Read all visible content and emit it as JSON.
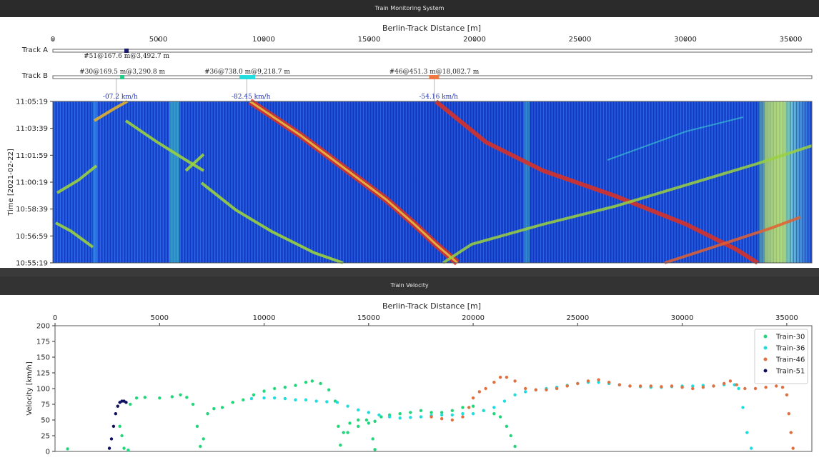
{
  "window": {
    "monitor_title": "Train Monitoring System",
    "velocity_title": "Train Velocity"
  },
  "waterfall": {
    "xlabel": "Berlin-Track Distance [m]",
    "ylabel": "Time [2021-02-22]",
    "xticks": [
      "0",
      "5000",
      "10000",
      "15000",
      "20000",
      "25000",
      "30000",
      "35000"
    ],
    "yticks": [
      "11:05:19",
      "11:03:39",
      "11:01:59",
      "11:00:19",
      "10:58:39",
      "10:56:59",
      "10:55:19"
    ],
    "tracks": [
      "Track A",
      "Track B"
    ],
    "track_labels": [
      {
        "text": "#51@167.6 m@3,492.7 m",
        "track": "A",
        "x_m": 3492.7,
        "color": "#1a1a6e"
      },
      {
        "text": "#30@169.5 m@3,290.8 m",
        "track": "B",
        "x_m": 3290.8,
        "color": "#22cc88"
      },
      {
        "text": "#36@738.0 m@9,218.7 m",
        "track": "B",
        "x_m": 9218.7,
        "color": "#22dddd"
      },
      {
        "text": "#46@451.3 m@18,082.7 m",
        "track": "B",
        "x_m": 18082.7,
        "color": "#ee7744"
      }
    ],
    "speed_labels": [
      {
        "text": "-07.2 km/h",
        "x_m": 3400
      },
      {
        "text": "-82.45 km/h",
        "x_m": 9600
      },
      {
        "text": "-54.16 km/h",
        "x_m": 18500
      }
    ],
    "x_range": [
      0,
      36000
    ]
  },
  "chart_data": {
    "type": "scatter",
    "xlabel": "Berlin-Track Distance [m]",
    "ylabel": "Velocity [km/h]",
    "xlim": [
      0,
      36200
    ],
    "ylim": [
      0,
      200
    ],
    "xticks": [
      "0",
      "5000",
      "10000",
      "15000",
      "20000",
      "25000",
      "30000",
      "35000"
    ],
    "yticks": [
      "0",
      "25",
      "50",
      "75",
      "100",
      "125",
      "150",
      "175",
      "200"
    ],
    "legend_position": "top-right",
    "series": [
      {
        "name": "Train-30",
        "color": "#22d67a",
        "points": [
          [
            600,
            4
          ],
          [
            3100,
            40
          ],
          [
            3200,
            25
          ],
          [
            3300,
            5
          ],
          [
            3500,
            2
          ],
          [
            3600,
            75
          ],
          [
            3900,
            85
          ],
          [
            4300,
            86
          ],
          [
            5000,
            85
          ],
          [
            5600,
            87
          ],
          [
            6000,
            90
          ],
          [
            6300,
            86
          ],
          [
            6600,
            75
          ],
          [
            6800,
            40
          ],
          [
            6950,
            8
          ],
          [
            7100,
            20
          ],
          [
            7300,
            60
          ],
          [
            7600,
            68
          ],
          [
            8000,
            70
          ],
          [
            8500,
            78
          ],
          [
            9000,
            82
          ],
          [
            9500,
            90
          ],
          [
            10000,
            96
          ],
          [
            10500,
            100
          ],
          [
            11000,
            102
          ],
          [
            11500,
            105
          ],
          [
            12000,
            110
          ],
          [
            12300,
            112
          ],
          [
            12700,
            108
          ],
          [
            13100,
            98
          ],
          [
            13400,
            80
          ],
          [
            13550,
            40
          ],
          [
            13650,
            10
          ],
          [
            13800,
            30
          ],
          [
            14100,
            45
          ],
          [
            14500,
            50
          ],
          [
            14900,
            50
          ],
          [
            15300,
            48
          ],
          [
            15600,
            55
          ],
          [
            16000,
            58
          ],
          [
            16500,
            60
          ],
          [
            17000,
            62
          ],
          [
            17500,
            65
          ],
          [
            18000,
            62
          ],
          [
            18500,
            62
          ],
          [
            19000,
            65
          ],
          [
            19500,
            70
          ],
          [
            20000,
            72
          ],
          [
            20500,
            65
          ],
          [
            21000,
            60
          ],
          [
            21300,
            55
          ],
          [
            21600,
            40
          ],
          [
            21800,
            25
          ],
          [
            22000,
            8
          ],
          [
            14000,
            30
          ],
          [
            14500,
            40
          ],
          [
            15000,
            45
          ],
          [
            15200,
            20
          ],
          [
            15300,
            3
          ]
        ]
      },
      {
        "name": "Train-36",
        "color": "#22dddd",
        "points": [
          [
            9400,
            84
          ],
          [
            10000,
            85
          ],
          [
            10500,
            85
          ],
          [
            11000,
            84
          ],
          [
            11500,
            82
          ],
          [
            12000,
            82
          ],
          [
            12500,
            80
          ],
          [
            13000,
            79
          ],
          [
            13500,
            78
          ],
          [
            14000,
            72
          ],
          [
            14500,
            66
          ],
          [
            15000,
            62
          ],
          [
            15500,
            58
          ],
          [
            16000,
            55
          ],
          [
            16500,
            53
          ],
          [
            17000,
            54
          ],
          [
            17500,
            55
          ],
          [
            18000,
            57
          ],
          [
            18500,
            58
          ],
          [
            19000,
            58
          ],
          [
            19500,
            60
          ],
          [
            20000,
            60
          ],
          [
            20500,
            65
          ],
          [
            21000,
            70
          ],
          [
            21500,
            80
          ],
          [
            22000,
            90
          ],
          [
            22500,
            95
          ],
          [
            23000,
            98
          ],
          [
            23500,
            100
          ],
          [
            24000,
            102
          ],
          [
            24500,
            105
          ],
          [
            25000,
            108
          ],
          [
            25500,
            110
          ],
          [
            26000,
            110
          ],
          [
            26500,
            108
          ],
          [
            27000,
            106
          ],
          [
            27500,
            104
          ],
          [
            28000,
            103
          ],
          [
            28500,
            102
          ],
          [
            29000,
            102
          ],
          [
            29500,
            103
          ],
          [
            30000,
            104
          ],
          [
            30500,
            104
          ],
          [
            31000,
            105
          ],
          [
            31500,
            104
          ],
          [
            32000,
            106
          ],
          [
            32500,
            106
          ],
          [
            32700,
            100
          ],
          [
            32900,
            70
          ],
          [
            33100,
            30
          ],
          [
            33300,
            5
          ]
        ]
      },
      {
        "name": "Train-46",
        "color": "#e07040",
        "points": [
          [
            18000,
            55
          ],
          [
            18500,
            52
          ],
          [
            19000,
            50
          ],
          [
            19500,
            55
          ],
          [
            19800,
            70
          ],
          [
            20000,
            85
          ],
          [
            20300,
            95
          ],
          [
            20600,
            100
          ],
          [
            21000,
            110
          ],
          [
            21300,
            118
          ],
          [
            21600,
            118
          ],
          [
            22000,
            112
          ],
          [
            22500,
            100
          ],
          [
            23000,
            98
          ],
          [
            23500,
            98
          ],
          [
            24000,
            100
          ],
          [
            24500,
            104
          ],
          [
            25000,
            108
          ],
          [
            25500,
            112
          ],
          [
            26000,
            114
          ],
          [
            26500,
            110
          ],
          [
            27000,
            106
          ],
          [
            27500,
            104
          ],
          [
            28000,
            104
          ],
          [
            28500,
            104
          ],
          [
            29000,
            103
          ],
          [
            29500,
            104
          ],
          [
            30000,
            102
          ],
          [
            30500,
            100
          ],
          [
            31000,
            102
          ],
          [
            31500,
            104
          ],
          [
            32000,
            108
          ],
          [
            32300,
            112
          ],
          [
            32600,
            106
          ],
          [
            33000,
            100
          ],
          [
            33500,
            100
          ],
          [
            34000,
            102
          ],
          [
            34500,
            104
          ],
          [
            34800,
            102
          ],
          [
            35000,
            90
          ],
          [
            35100,
            60
          ],
          [
            35200,
            30
          ],
          [
            35300,
            5
          ]
        ]
      },
      {
        "name": "Train-51",
        "color": "#101060",
        "points": [
          [
            2600,
            5
          ],
          [
            2700,
            20
          ],
          [
            2800,
            40
          ],
          [
            2900,
            60
          ],
          [
            3000,
            72
          ],
          [
            3100,
            78
          ],
          [
            3200,
            80
          ],
          [
            3300,
            80
          ],
          [
            3400,
            78
          ]
        ]
      }
    ]
  }
}
